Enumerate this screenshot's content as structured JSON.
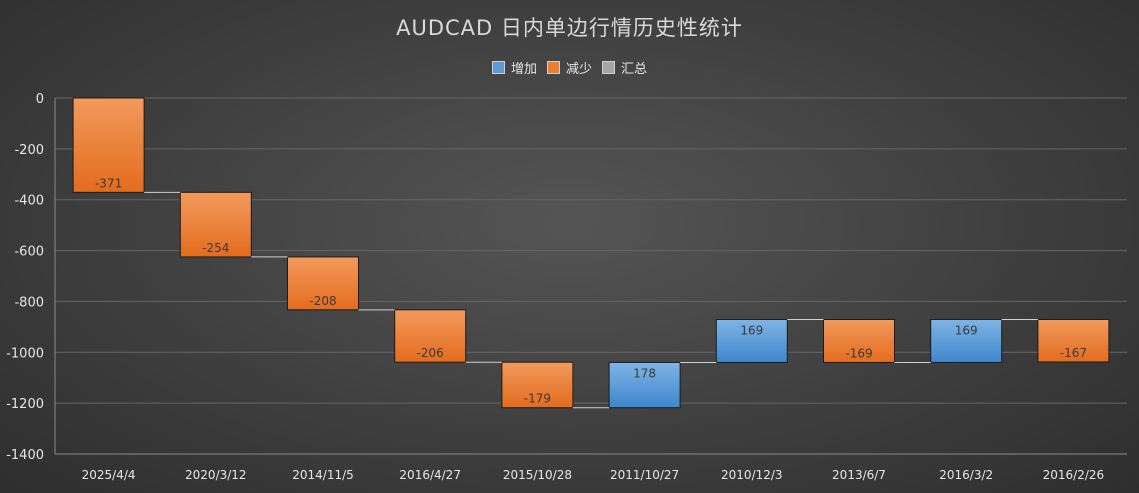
{
  "chart_data": {
    "type": "waterfall",
    "title": "AUDCAD 日内单边行情历史性统计",
    "legend": [
      {
        "label": "增加",
        "color": "#5b9bd5"
      },
      {
        "label": "减少",
        "color": "#ed7d31"
      },
      {
        "label": "汇总",
        "color": "#a5a5a5"
      }
    ],
    "legend_position": "top",
    "categories": [
      "2025/4/4",
      "2020/3/12",
      "2014/11/5",
      "2016/4/27",
      "2015/10/28",
      "2011/10/27",
      "2010/12/3",
      "2013/6/7",
      "2016/3/2",
      "2016/2/26"
    ],
    "values": [
      -371,
      -254,
      -208,
      -206,
      -179,
      178,
      169,
      -169,
      169,
      -167
    ],
    "ylim": [
      -1400,
      0
    ],
    "yticks": [
      0,
      -200,
      -400,
      -600,
      -800,
      -1000,
      -1200,
      -1400
    ],
    "xlabel": "",
    "ylabel": "",
    "grid": true,
    "colors": {
      "increase": "#5b9bd5",
      "decrease": "#ed7d31",
      "total": "#a5a5a5"
    }
  }
}
